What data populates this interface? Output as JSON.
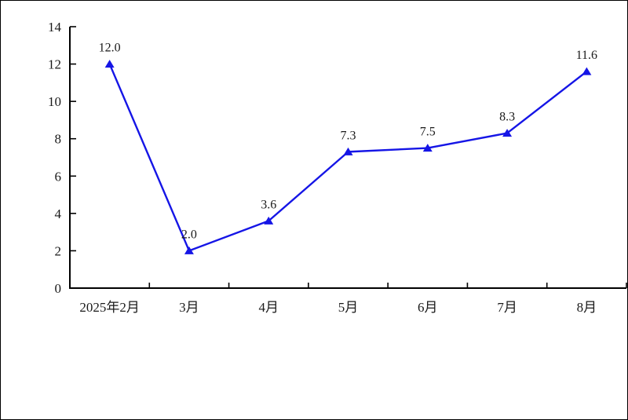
{
  "page": {
    "background": "#ffffff",
    "border_color": "#000000"
  },
  "chart_data": {
    "type": "line",
    "title": "",
    "categories": [
      "2025年2月",
      "3月",
      "4月",
      "5月",
      "6月",
      "7月",
      "8月"
    ],
    "values": [
      12.0,
      2.0,
      3.6,
      7.3,
      7.5,
      8.3,
      11.6
    ],
    "point_labels": [
      "12.0",
      "2.0",
      "3.6",
      "7.3",
      "7.5",
      "8.3",
      "11.6"
    ],
    "ylim": [
      0,
      14
    ],
    "yticks": [
      0,
      2,
      4,
      6,
      8,
      10,
      12,
      14
    ],
    "grid": false,
    "legend": "none",
    "xlabel": "",
    "ylabel": "",
    "line_color": "#1515e6",
    "marker": "triangle-up",
    "marker_color": "#1515e6",
    "axis_color": "#000000",
    "text_color": "#1a1a1a"
  }
}
